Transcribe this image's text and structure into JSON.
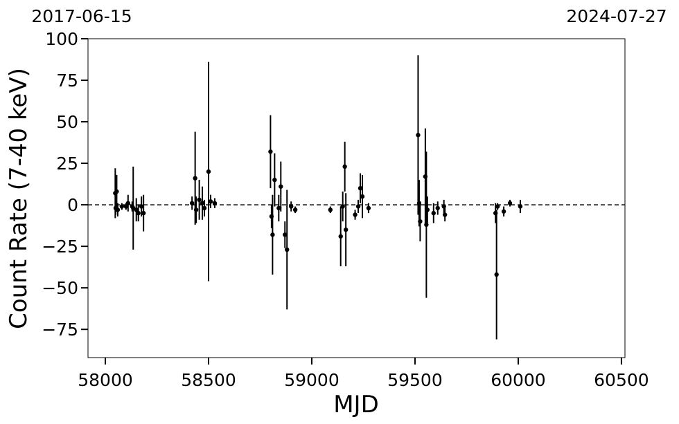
{
  "chart_data": {
    "type": "errorbar",
    "x_label": "MJD",
    "y_label": "Count Rate (7-40 keV)",
    "top_left_label": "2017-06-15",
    "top_right_label": "2024-07-27",
    "xlim": [
      57916,
      60517
    ],
    "ylim": [
      -92,
      100
    ],
    "xticks": [
      58000,
      58500,
      59000,
      59500,
      60000,
      60500
    ],
    "yticks": [
      {
        "value": -75,
        "label": "−75"
      },
      {
        "value": -50,
        "label": "−50"
      },
      {
        "value": -25,
        "label": "−25"
      },
      0,
      25,
      50,
      75,
      100
    ],
    "hline": 0,
    "color": "#000000",
    "x": [
      58048,
      58050,
      58055,
      58060,
      58080,
      58100,
      58110,
      58130,
      58135,
      58150,
      58160,
      58175,
      58185,
      58420,
      58435,
      58440,
      58455,
      58470,
      58480,
      58500,
      58510,
      58530,
      58800,
      58805,
      58810,
      58820,
      58840,
      58850,
      58870,
      58880,
      58900,
      58920,
      59090,
      59140,
      59150,
      59160,
      59165,
      59210,
      59225,
      59235,
      59245,
      59275,
      59515,
      59520,
      59525,
      59550,
      59555,
      59560,
      59590,
      59610,
      59640,
      59645,
      59890,
      59895,
      59900,
      59930,
      59960,
      60010
    ],
    "values": [
      7,
      -2,
      8,
      -3,
      -1,
      -1,
      1,
      -1,
      -2,
      -3,
      -5,
      -1,
      -5,
      1,
      16,
      -3,
      3,
      1,
      -2,
      20,
      2,
      1,
      32,
      -7,
      -18,
      15,
      -2,
      11,
      -18,
      -27,
      -1,
      -3,
      -3,
      -19,
      -1,
      23,
      -15,
      -6,
      -1,
      10,
      5,
      -2,
      42,
      1,
      -10,
      17,
      -12,
      -3,
      -5,
      -2,
      -1,
      -6,
      -5,
      -42,
      -1,
      -4,
      1,
      -1
    ],
    "errors": [
      15,
      4,
      10,
      4,
      2,
      2,
      5,
      3,
      25,
      7,
      5,
      6,
      11,
      4,
      28,
      8,
      12,
      10,
      5,
      66,
      4,
      3,
      22,
      7,
      24,
      16,
      8,
      15,
      8,
      36,
      3,
      2,
      2,
      18,
      9,
      15,
      22,
      3,
      4,
      9,
      13,
      3,
      48,
      14,
      12,
      29,
      44,
      8,
      6,
      4,
      4,
      4,
      6,
      39,
      2,
      3,
      2,
      4
    ]
  }
}
